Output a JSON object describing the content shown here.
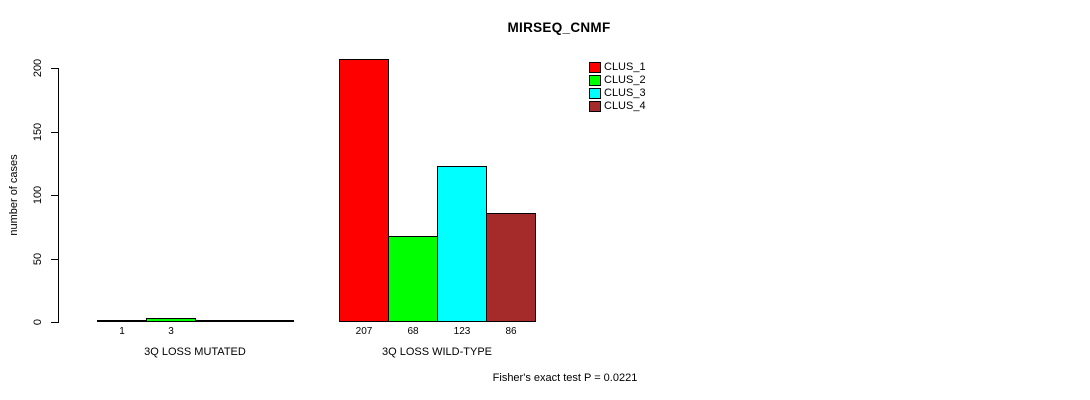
{
  "chart_data": {
    "type": "bar",
    "title": "MIRSEQ_CNMF",
    "ylabel": "number of cases",
    "ylim": [
      0,
      200
    ],
    "yticks": [
      0,
      50,
      100,
      150,
      200
    ],
    "grid": false,
    "legend_position": "top-right",
    "categories": [
      "3Q LOSS MUTATED",
      "3Q LOSS WILD-TYPE"
    ],
    "series": [
      {
        "name": "CLUS_1",
        "color": "#FF0000",
        "values": [
          1,
          207
        ]
      },
      {
        "name": "CLUS_2",
        "color": "#00FF00",
        "values": [
          3,
          68
        ]
      },
      {
        "name": "CLUS_3",
        "color": "#00FFFF",
        "values": [
          0,
          123
        ]
      },
      {
        "name": "CLUS_4",
        "color": "#A52A2A",
        "values": [
          0,
          86
        ]
      }
    ],
    "bar_value_labels": [
      [
        "1",
        "3",
        "",
        ""
      ],
      [
        "207",
        "68",
        "123",
        "86"
      ]
    ],
    "annotation": "Fisher's exact test P = 0.0221"
  }
}
